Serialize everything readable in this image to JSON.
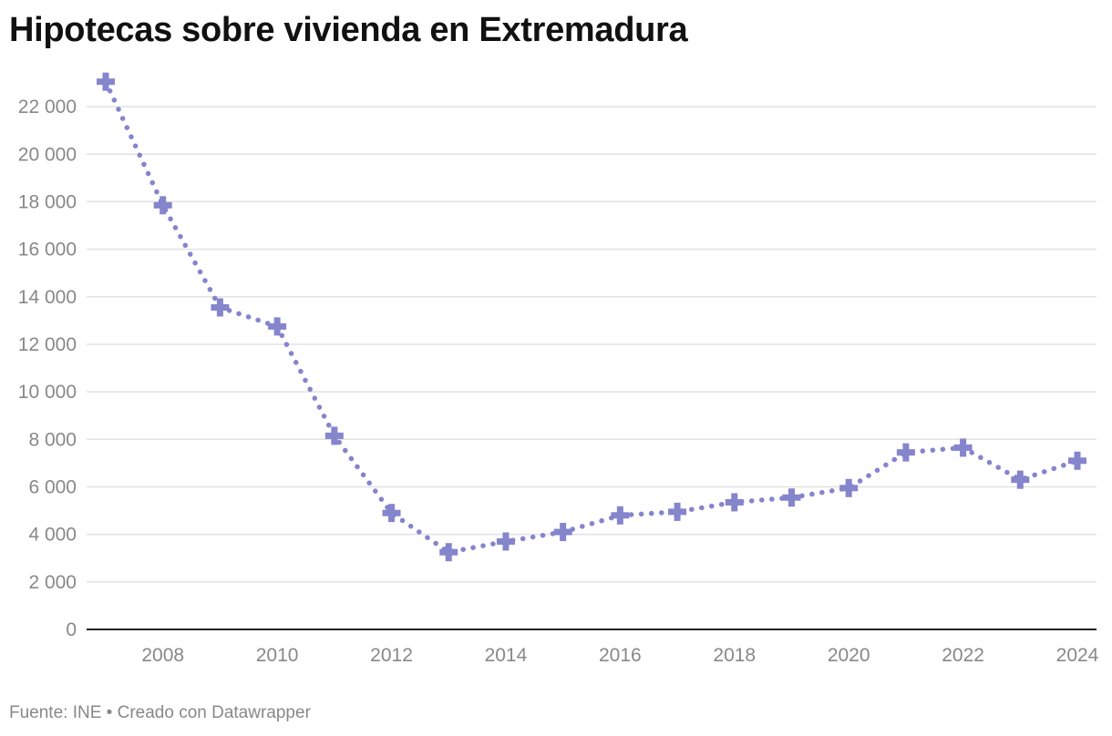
{
  "title": "Hipotecas sobre vivienda en Extremadura",
  "footer": {
    "source_label": "Fuente: INE",
    "separator": "•",
    "credit": "Creado con Datawrapper"
  },
  "colors": {
    "series": "#8585cc",
    "grid": "#e2e2e2",
    "axis": "#222222",
    "tick_text": "#888888"
  },
  "chart_data": {
    "type": "line",
    "title": "Hipotecas sobre vivienda en Extremadura",
    "xlabel": "",
    "ylabel": "",
    "line_style": "dotted",
    "marker": "plus",
    "grid": true,
    "legend": "none",
    "xlim": [
      2007,
      2024
    ],
    "ylim": [
      0,
      23000
    ],
    "x_ticks": [
      2008,
      2010,
      2012,
      2014,
      2016,
      2018,
      2020,
      2022,
      2024
    ],
    "x_tick_labels": [
      "2008",
      "2010",
      "2012",
      "2014",
      "2016",
      "2018",
      "2020",
      "2022",
      "2024"
    ],
    "y_ticks": [
      0,
      2000,
      4000,
      6000,
      8000,
      10000,
      12000,
      14000,
      16000,
      18000,
      20000,
      22000
    ],
    "y_tick_labels": [
      "0",
      "2 000",
      "4 000",
      "6 000",
      "8 000",
      "10 000",
      "12 000",
      "14 000",
      "16 000",
      "18 000",
      "20 000",
      "22 000"
    ],
    "x": [
      2007,
      2008,
      2009,
      2010,
      2011,
      2012,
      2013,
      2014,
      2015,
      2016,
      2017,
      2018,
      2019,
      2020,
      2021,
      2022,
      2023,
      2024
    ],
    "series": [
      {
        "values": [
          23050,
          17850,
          13550,
          12750,
          8150,
          4900,
          3250,
          3700,
          4100,
          4800,
          4950,
          5350,
          5550,
          5950,
          7450,
          7650,
          6300,
          7100
        ]
      }
    ]
  }
}
